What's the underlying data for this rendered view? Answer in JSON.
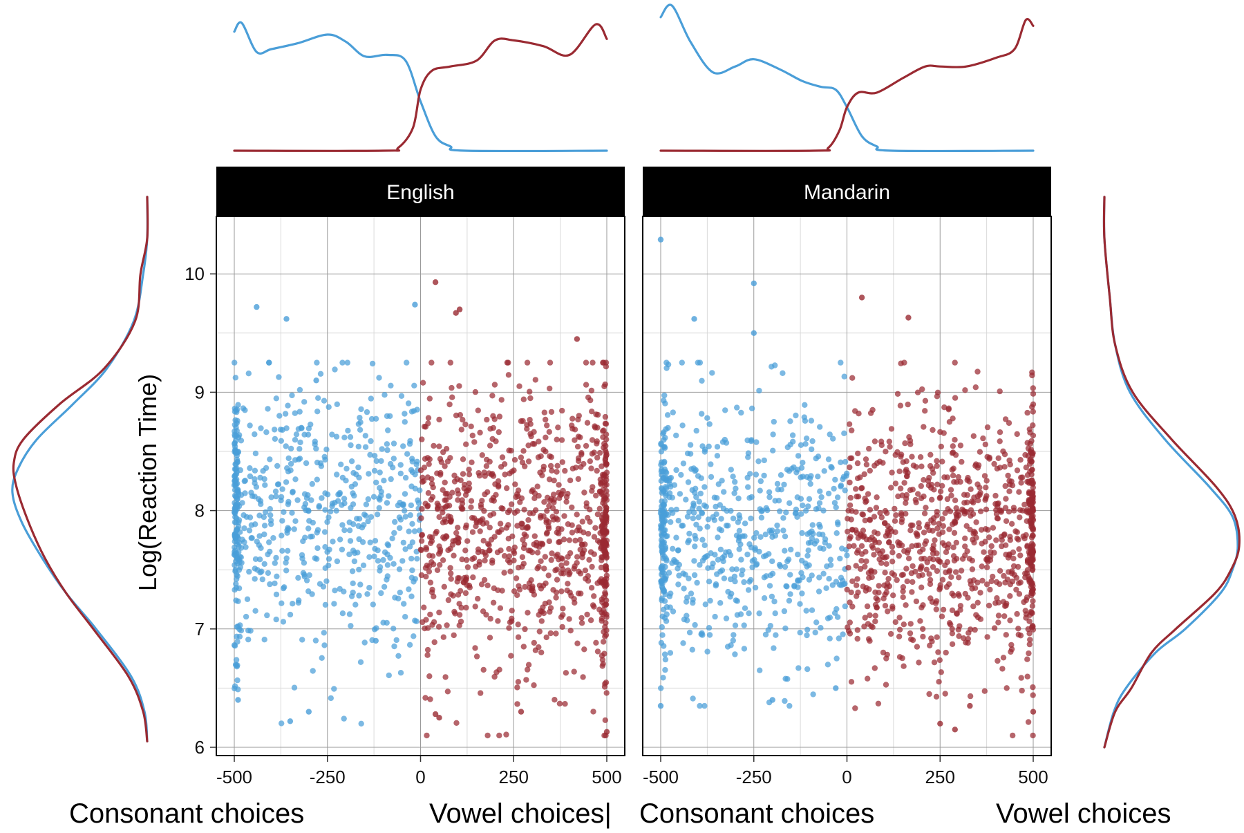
{
  "colors": {
    "consonant": "#4A9ED8",
    "vowel": "#9A2A32",
    "strip_bg": "#000000",
    "strip_text": "#ffffff",
    "grid": "#cccccc",
    "panel_border": "#000000"
  },
  "chart_data": {
    "type": "scatter",
    "ylabel": "Log(Reaction Time)",
    "xlim": [
      -500,
      500
    ],
    "ylim": [
      6,
      10.5
    ],
    "x_ticks": [
      -500,
      -250,
      0,
      250,
      500
    ],
    "x_tick_labels": [
      "-500",
      "-250",
      "0",
      "250",
      "500"
    ],
    "y_ticks": [
      6,
      7,
      8,
      9,
      10
    ],
    "y_tick_labels": [
      "6",
      "7",
      "8",
      "9",
      "10"
    ],
    "grid": true,
    "x_captions": [
      "Consonant choices",
      "Vowel choices|",
      "Consonant choices",
      "Vowel choices"
    ],
    "panels": [
      {
        "name": "English",
        "series": [
          {
            "key": "consonant",
            "x_range": [
              -500,
              0
            ],
            "y_mean": 7.95,
            "y_sd": 0.6,
            "y_min": 6.2,
            "y_max": 9.75,
            "approx_points": 650,
            "edge_cluster": -500,
            "outliers": [
              [
                -440,
                9.72
              ],
              [
                -360,
                9.62
              ],
              [
                -15,
                9.74
              ],
              [
                -280,
                9.1
              ],
              [
                -350,
                6.22
              ],
              [
                -120,
                6.9
              ],
              [
                -490,
                6.4
              ],
              [
                -300,
                6.3
              ]
            ]
          },
          {
            "key": "vowel",
            "x_range": [
              0,
              500
            ],
            "y_mean": 7.8,
            "y_sd": 0.6,
            "y_min": 6.1,
            "y_max": 9.95,
            "approx_points": 900,
            "edge_cluster": 500,
            "outliers": [
              [
                40,
                9.93
              ],
              [
                95,
                9.67
              ],
              [
                105,
                9.7
              ],
              [
                420,
                9.45
              ],
              [
                40,
                6.28
              ],
              [
                50,
                6.25
              ],
              [
                500,
                6.13
              ],
              [
                270,
                6.3
              ]
            ]
          }
        ],
        "density_top": {
          "consonant": [
            [
              -500,
              0.82
            ],
            [
              -480,
              0.88
            ],
            [
              -440,
              0.68
            ],
            [
              -400,
              0.7
            ],
            [
              -330,
              0.74
            ],
            [
              -250,
              0.8
            ],
            [
              -200,
              0.75
            ],
            [
              -150,
              0.65
            ],
            [
              -90,
              0.66
            ],
            [
              -40,
              0.62
            ],
            [
              0,
              0.34
            ],
            [
              40,
              0.1
            ],
            [
              80,
              0.03
            ],
            [
              120,
              0.0
            ],
            [
              500,
              0.0
            ]
          ],
          "vowel": [
            [
              -500,
              0.0
            ],
            [
              -100,
              0.0
            ],
            [
              -60,
              0.02
            ],
            [
              -20,
              0.16
            ],
            [
              0,
              0.42
            ],
            [
              30,
              0.55
            ],
            [
              80,
              0.58
            ],
            [
              150,
              0.62
            ],
            [
              200,
              0.76
            ],
            [
              250,
              0.76
            ],
            [
              330,
              0.72
            ],
            [
              400,
              0.66
            ],
            [
              470,
              0.87
            ],
            [
              500,
              0.77
            ]
          ]
        }
      },
      {
        "name": "Mandarin",
        "series": [
          {
            "key": "consonant",
            "x_range": [
              -500,
              0
            ],
            "y_mean": 7.85,
            "y_sd": 0.55,
            "y_min": 6.35,
            "y_max": 10.3,
            "approx_points": 650,
            "edge_cluster": -500,
            "outliers": [
              [
                -500,
                10.29
              ],
              [
                -250,
                9.92
              ],
              [
                -250,
                9.5
              ],
              [
                -410,
                9.62
              ],
              [
                -500,
                6.35
              ],
              [
                -200,
                6.4
              ],
              [
                -30,
                6.5
              ]
            ]
          },
          {
            "key": "vowel",
            "x_range": [
              0,
              500
            ],
            "y_mean": 7.75,
            "y_sd": 0.55,
            "y_min": 6.1,
            "y_max": 9.8,
            "approx_points": 900,
            "edge_cluster": 500,
            "outliers": [
              [
                40,
                9.8
              ],
              [
                165,
                9.63
              ],
              [
                250,
                6.2
              ],
              [
                290,
                6.15
              ],
              [
                330,
                6.35
              ],
              [
                500,
                6.3
              ]
            ]
          }
        ],
        "density_top": {
          "consonant": [
            [
              -500,
              0.92
            ],
            [
              -470,
              1.0
            ],
            [
              -420,
              0.75
            ],
            [
              -360,
              0.54
            ],
            [
              -300,
              0.58
            ],
            [
              -250,
              0.63
            ],
            [
              -180,
              0.56
            ],
            [
              -120,
              0.48
            ],
            [
              -70,
              0.44
            ],
            [
              -30,
              0.42
            ],
            [
              0,
              0.3
            ],
            [
              40,
              0.1
            ],
            [
              80,
              0.03
            ],
            [
              120,
              0.0
            ],
            [
              500,
              0.0
            ]
          ],
          "vowel": [
            [
              -500,
              0.0
            ],
            [
              -90,
              0.0
            ],
            [
              -50,
              0.02
            ],
            [
              -20,
              0.14
            ],
            [
              0,
              0.3
            ],
            [
              30,
              0.4
            ],
            [
              80,
              0.4
            ],
            [
              150,
              0.5
            ],
            [
              210,
              0.58
            ],
            [
              250,
              0.58
            ],
            [
              320,
              0.58
            ],
            [
              400,
              0.64
            ],
            [
              450,
              0.7
            ],
            [
              480,
              0.9
            ],
            [
              500,
              0.86
            ]
          ]
        }
      }
    ],
    "density_side": [
      {
        "name": "English",
        "consonant": [
          [
            10.65,
            0.0
          ],
          [
            10.3,
            0.0
          ],
          [
            10.0,
            0.03
          ],
          [
            9.6,
            0.1
          ],
          [
            9.2,
            0.3
          ],
          [
            8.9,
            0.55
          ],
          [
            8.6,
            0.82
          ],
          [
            8.35,
            0.96
          ],
          [
            8.15,
            1.0
          ],
          [
            7.9,
            0.93
          ],
          [
            7.6,
            0.78
          ],
          [
            7.3,
            0.6
          ],
          [
            7.0,
            0.38
          ],
          [
            6.6,
            0.12
          ],
          [
            6.3,
            0.02
          ],
          [
            6.05,
            0.0
          ]
        ],
        "vowel": [
          [
            10.65,
            0.0
          ],
          [
            10.3,
            0.0
          ],
          [
            10.0,
            0.05
          ],
          [
            9.6,
            0.09
          ],
          [
            9.2,
            0.32
          ],
          [
            8.9,
            0.65
          ],
          [
            8.6,
            0.92
          ],
          [
            8.4,
            0.99
          ],
          [
            8.2,
            0.97
          ],
          [
            7.9,
            0.88
          ],
          [
            7.6,
            0.76
          ],
          [
            7.3,
            0.6
          ],
          [
            7.0,
            0.4
          ],
          [
            6.6,
            0.14
          ],
          [
            6.3,
            0.03
          ],
          [
            6.05,
            0.0
          ]
        ]
      },
      {
        "name": "Mandarin",
        "consonant": [
          [
            10.65,
            0.0
          ],
          [
            10.3,
            0.0
          ],
          [
            9.8,
            0.04
          ],
          [
            9.4,
            0.08
          ],
          [
            9.0,
            0.19
          ],
          [
            8.6,
            0.45
          ],
          [
            8.2,
            0.78
          ],
          [
            7.95,
            0.95
          ],
          [
            7.7,
            0.99
          ],
          [
            7.5,
            0.95
          ],
          [
            7.3,
            0.86
          ],
          [
            7.0,
            0.6
          ],
          [
            6.8,
            0.38
          ],
          [
            6.5,
            0.16
          ],
          [
            6.3,
            0.07
          ],
          [
            6.0,
            0.0
          ]
        ],
        "vowel": [
          [
            10.65,
            0.0
          ],
          [
            10.3,
            0.0
          ],
          [
            9.8,
            0.04
          ],
          [
            9.4,
            0.08
          ],
          [
            9.0,
            0.21
          ],
          [
            8.6,
            0.5
          ],
          [
            8.2,
            0.83
          ],
          [
            7.95,
            0.97
          ],
          [
            7.7,
            1.0
          ],
          [
            7.5,
            0.94
          ],
          [
            7.3,
            0.82
          ],
          [
            7.0,
            0.53
          ],
          [
            6.8,
            0.35
          ],
          [
            6.5,
            0.2
          ],
          [
            6.3,
            0.08
          ],
          [
            6.0,
            0.0
          ]
        ]
      }
    ]
  }
}
